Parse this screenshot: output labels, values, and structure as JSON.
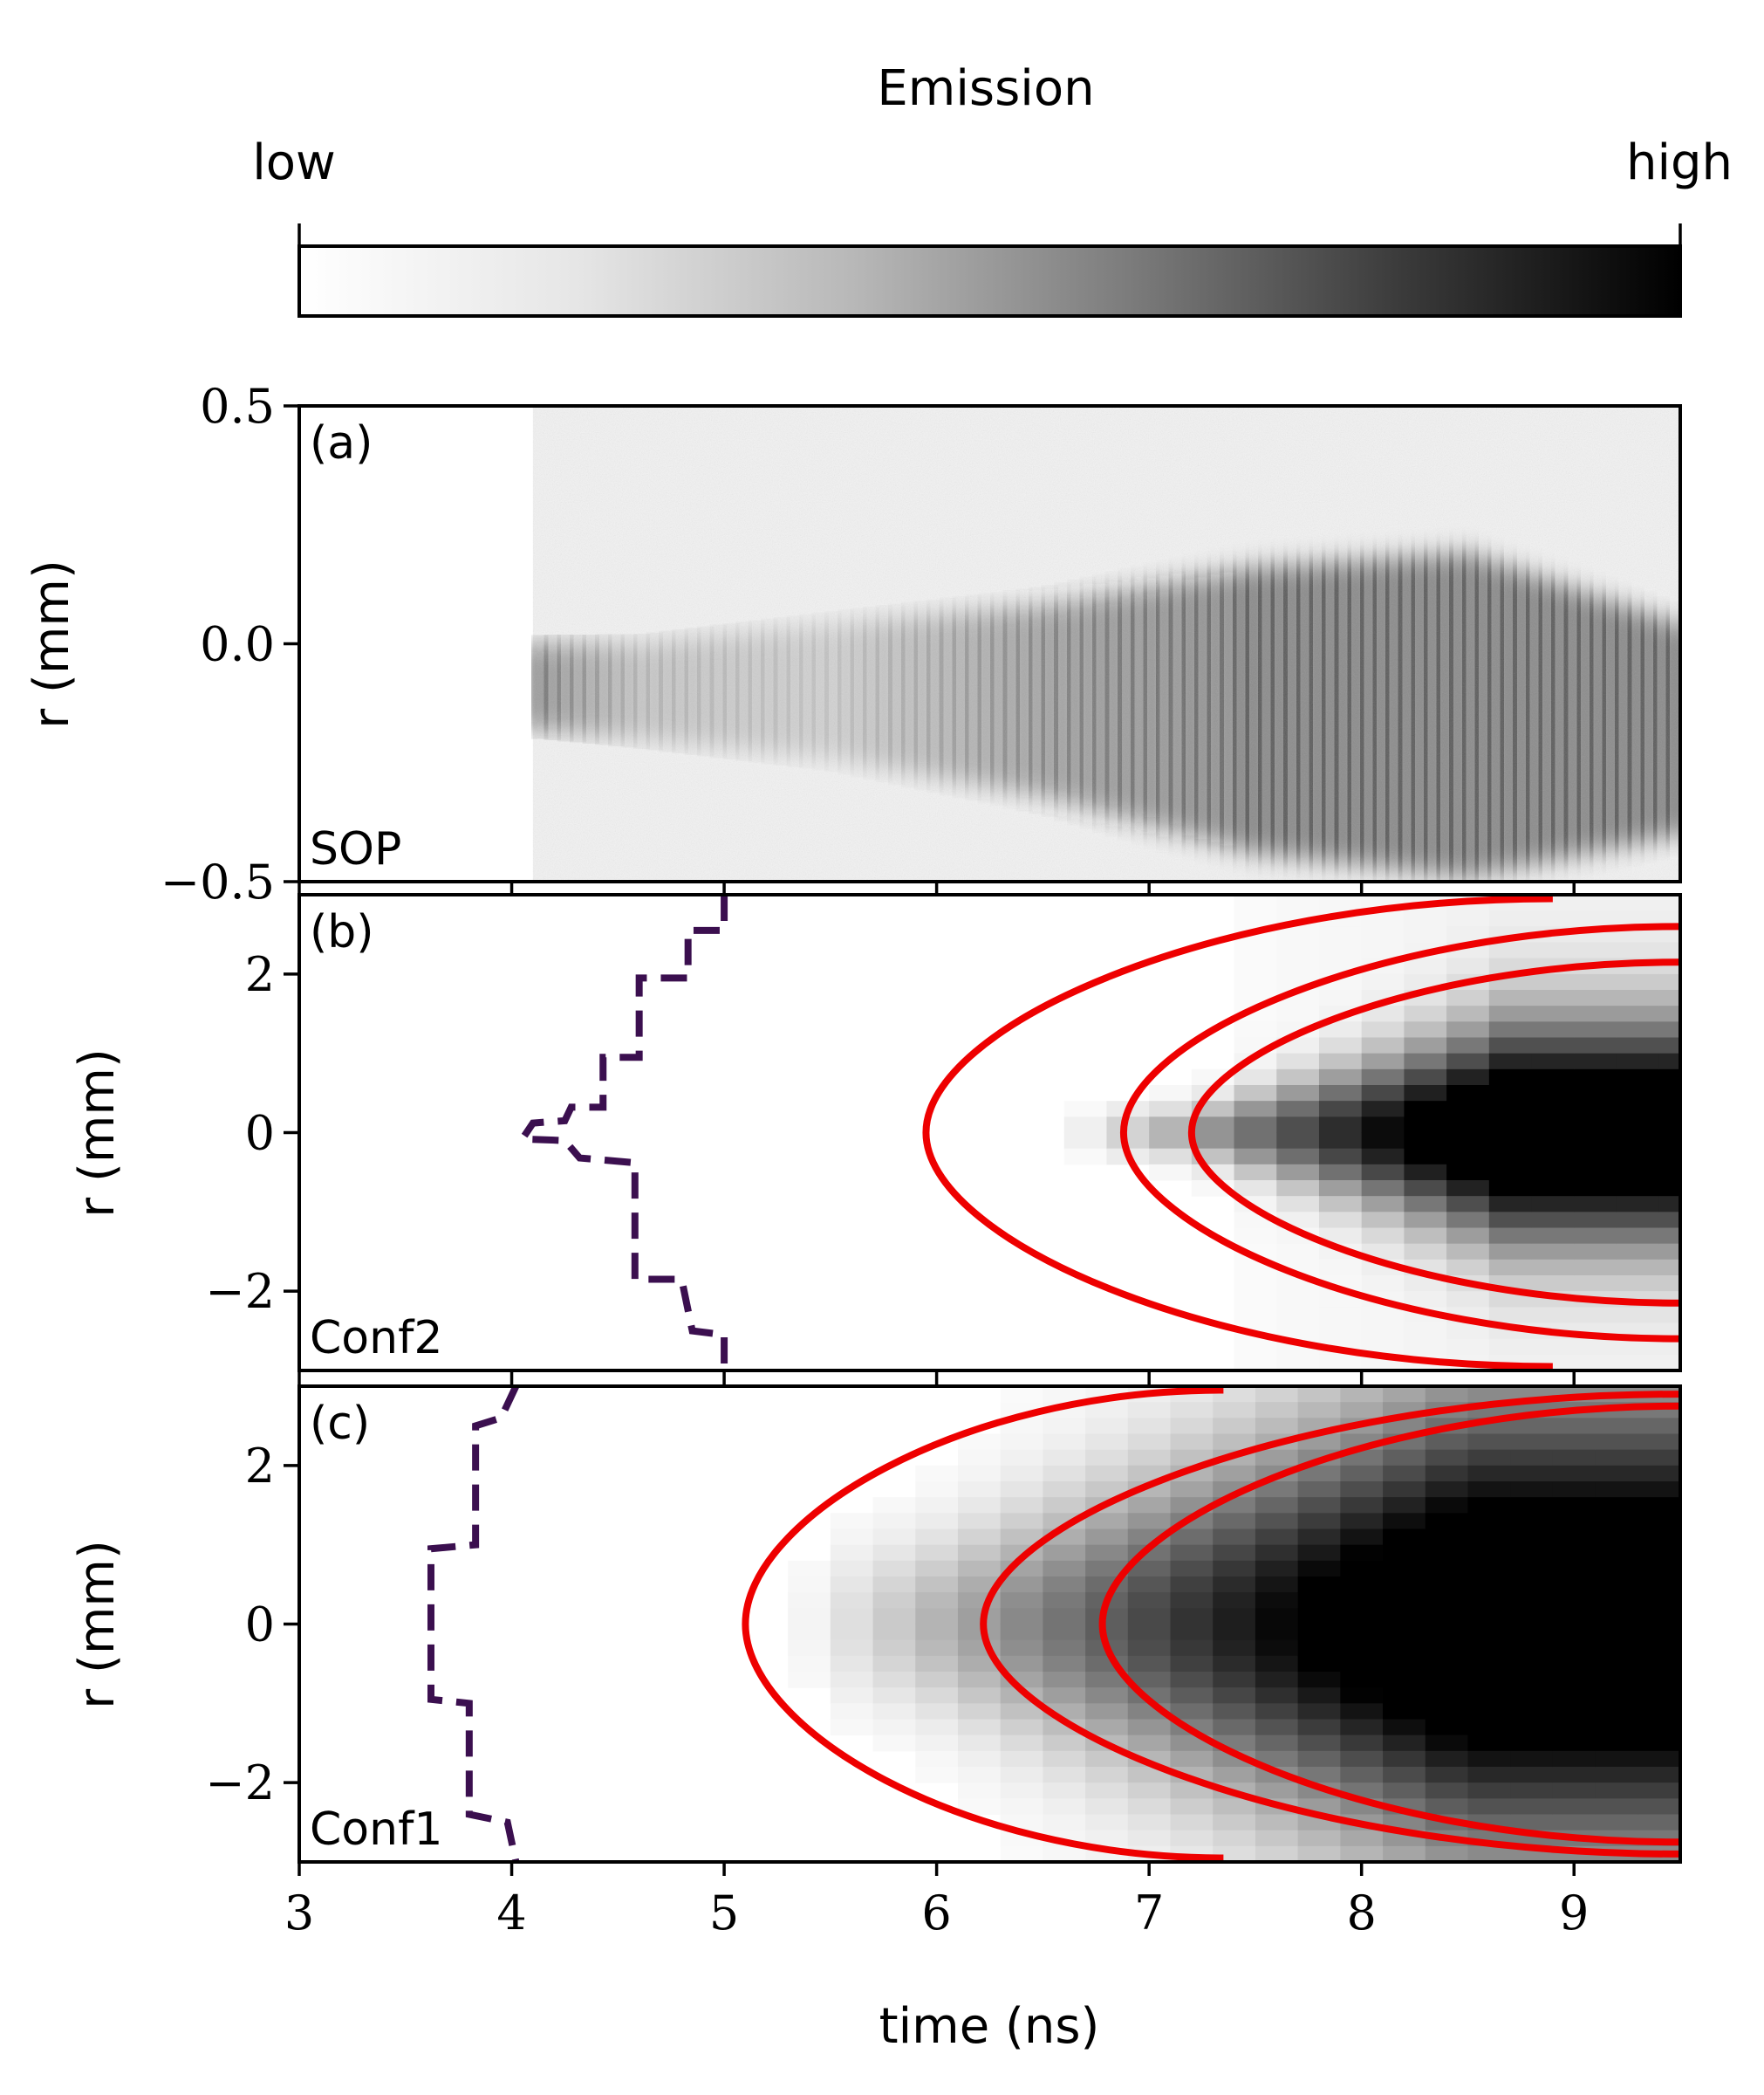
{
  "colorbar": {
    "title": "Emission",
    "low_label": "low",
    "high_label": "high",
    "cmap": "gray_r"
  },
  "chart_data": [
    {
      "type": "heatmap",
      "panel": "(a)",
      "label": "SOP",
      "xlabel": "",
      "ylabel": "r (mm)",
      "xlim": [
        3,
        9.5
      ],
      "ylim": [
        -0.5,
        0.5
      ],
      "yticks": [
        0.5,
        0.0,
        -0.5
      ],
      "ytick_labels": [
        "0.5",
        "0.0",
        "−0.5"
      ],
      "data_start_time": 4.1,
      "emission_band": [
        {
          "t": 4.1,
          "center": -0.09,
          "half_width": 0.09,
          "intensity": 0.85
        },
        {
          "t": 4.6,
          "center": -0.1,
          "half_width": 0.1,
          "intensity": 0.45
        },
        {
          "t": 5.5,
          "center": -0.1,
          "half_width": 0.14,
          "intensity": 0.35
        },
        {
          "t": 6.5,
          "center": -0.12,
          "half_width": 0.2,
          "intensity": 0.75
        },
        {
          "t": 7.5,
          "center": -0.14,
          "half_width": 0.3,
          "intensity": 0.95
        },
        {
          "t": 8.5,
          "center": -0.15,
          "half_width": 0.34,
          "intensity": 1.0
        },
        {
          "t": 9.5,
          "center": -0.18,
          "half_width": 0.22,
          "intensity": 0.95
        }
      ]
    },
    {
      "type": "heatmap",
      "panel": "(b)",
      "label": "Conf2",
      "xlabel": "",
      "ylabel": "r (mm)",
      "xlim": [
        3,
        9.5
      ],
      "ylim": [
        -3,
        3
      ],
      "yticks": [
        2,
        0,
        -2
      ],
      "ytick_labels": [
        "2",
        "0",
        "−2"
      ],
      "emission_start_time": 7.2,
      "emission_scale_time": 1.5,
      "emission_width": [
        0.3,
        1.3
      ],
      "contours": [
        {
          "tip_time": 5.95,
          "edge_time": 8.9,
          "edge_r": 2.95
        },
        {
          "tip_time": 6.88,
          "edge_time": 9.5,
          "edge_r": 2.6
        },
        {
          "tip_time": 7.2,
          "edge_time": 9.5,
          "edge_r": 2.15
        }
      ],
      "dashed_profile": {
        "color": "#3b0f4f",
        "points": [
          [
            5.0,
            3.0
          ],
          [
            5.0,
            2.55
          ],
          [
            4.83,
            2.55
          ],
          [
            4.83,
            1.95
          ],
          [
            4.6,
            1.95
          ],
          [
            4.6,
            0.95
          ],
          [
            4.43,
            0.95
          ],
          [
            4.43,
            0.32
          ],
          [
            4.28,
            0.32
          ],
          [
            4.25,
            0.15
          ],
          [
            4.1,
            0.12
          ],
          [
            4.05,
            -0.08
          ],
          [
            4.25,
            -0.1
          ],
          [
            4.32,
            -0.32
          ],
          [
            4.58,
            -0.38
          ],
          [
            4.58,
            -1.85
          ],
          [
            4.8,
            -1.85
          ],
          [
            4.85,
            -2.5
          ],
          [
            5.0,
            -2.55
          ],
          [
            5.0,
            -3.0
          ]
        ]
      }
    },
    {
      "type": "heatmap",
      "panel": "(c)",
      "label": "Conf1",
      "xlabel": "time (ns)",
      "ylabel": "r (mm)",
      "xlim": [
        3,
        9.5
      ],
      "ylim": [
        -3,
        3
      ],
      "yticks": [
        2,
        0,
        -2
      ],
      "ytick_labels": [
        "2",
        "0",
        "−2"
      ],
      "xticks": [
        3,
        4,
        5,
        6,
        7,
        8,
        9
      ],
      "xtick_labels": [
        "3",
        "4",
        "5",
        "6",
        "7",
        "8",
        "9"
      ],
      "emission_start_time": 5.9,
      "emission_scale_time": 2.6,
      "emission_width": [
        1.0,
        2.7
      ],
      "contours": [
        {
          "tip_time": 5.1,
          "edge_time": 7.35,
          "edge_r": 2.95
        },
        {
          "tip_time": 6.22,
          "edge_time": 9.5,
          "edge_r": 2.9
        },
        {
          "tip_time": 6.78,
          "edge_time": 9.5,
          "edge_r": 2.75
        }
      ],
      "dashed_profile": {
        "color": "#3b0f4f",
        "points": [
          [
            4.02,
            3.0
          ],
          [
            3.95,
            2.6
          ],
          [
            3.83,
            2.5
          ],
          [
            3.83,
            1.0
          ],
          [
            3.62,
            0.95
          ],
          [
            3.62,
            -0.95
          ],
          [
            3.8,
            -1.0
          ],
          [
            3.8,
            -2.4
          ],
          [
            3.98,
            -2.5
          ],
          [
            4.02,
            -3.0
          ]
        ]
      }
    }
  ]
}
